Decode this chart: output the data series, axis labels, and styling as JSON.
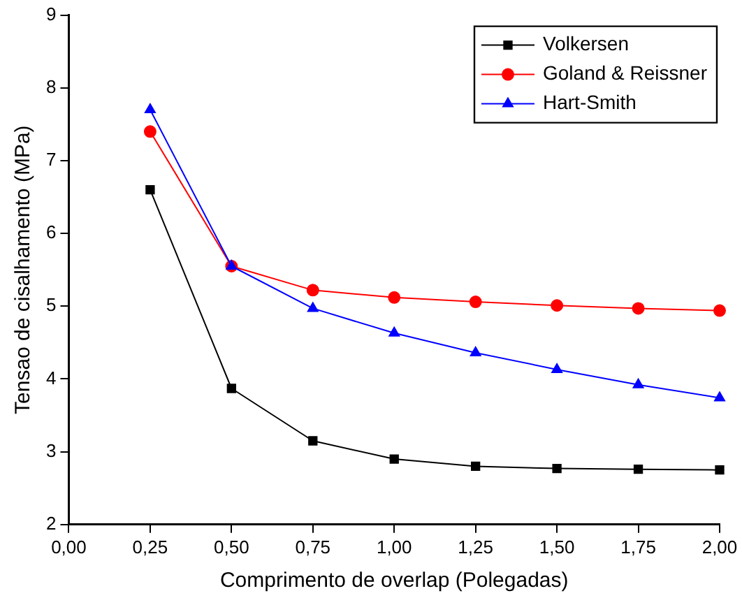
{
  "chart_data": {
    "type": "line",
    "xlabel": "Comprimento de overlap (Polegadas)",
    "ylabel": "Tensao de cisalhamento (MPa)",
    "x": [
      0.25,
      0.5,
      0.75,
      1.0,
      1.25,
      1.5,
      1.75,
      2.0
    ],
    "series": [
      {
        "name": "Volkersen",
        "color": "#000000",
        "marker": "square",
        "values": [
          6.6,
          3.87,
          3.15,
          2.9,
          2.8,
          2.77,
          2.76,
          2.75
        ]
      },
      {
        "name": "Goland & Reissner",
        "color": "#ff0000",
        "marker": "circle",
        "values": [
          7.4,
          5.55,
          5.22,
          5.12,
          5.06,
          5.01,
          4.97,
          4.94
        ]
      },
      {
        "name": "Hart-Smith",
        "color": "#0000ff",
        "marker": "triangle",
        "values": [
          7.7,
          5.55,
          4.97,
          4.63,
          4.36,
          4.13,
          3.92,
          3.74
        ]
      }
    ],
    "xlim": [
      0,
      2.0
    ],
    "xticks": [
      {
        "value": 0,
        "label": "0,00"
      },
      {
        "value": 0.25,
        "label": "0,25"
      },
      {
        "value": 0.5,
        "label": "0,50"
      },
      {
        "value": 0.75,
        "label": "0,75"
      },
      {
        "value": 1.0,
        "label": "1,00"
      },
      {
        "value": 1.25,
        "label": "1,25"
      },
      {
        "value": 1.5,
        "label": "1,50"
      },
      {
        "value": 1.75,
        "label": "1,75"
      },
      {
        "value": 2.0,
        "label": "2,00"
      }
    ],
    "ylim": [
      2,
      9
    ],
    "yticks": [
      2,
      3,
      4,
      5,
      6,
      7,
      8,
      9
    ],
    "grid": false,
    "legend": "top right",
    "line_style": "solid"
  }
}
